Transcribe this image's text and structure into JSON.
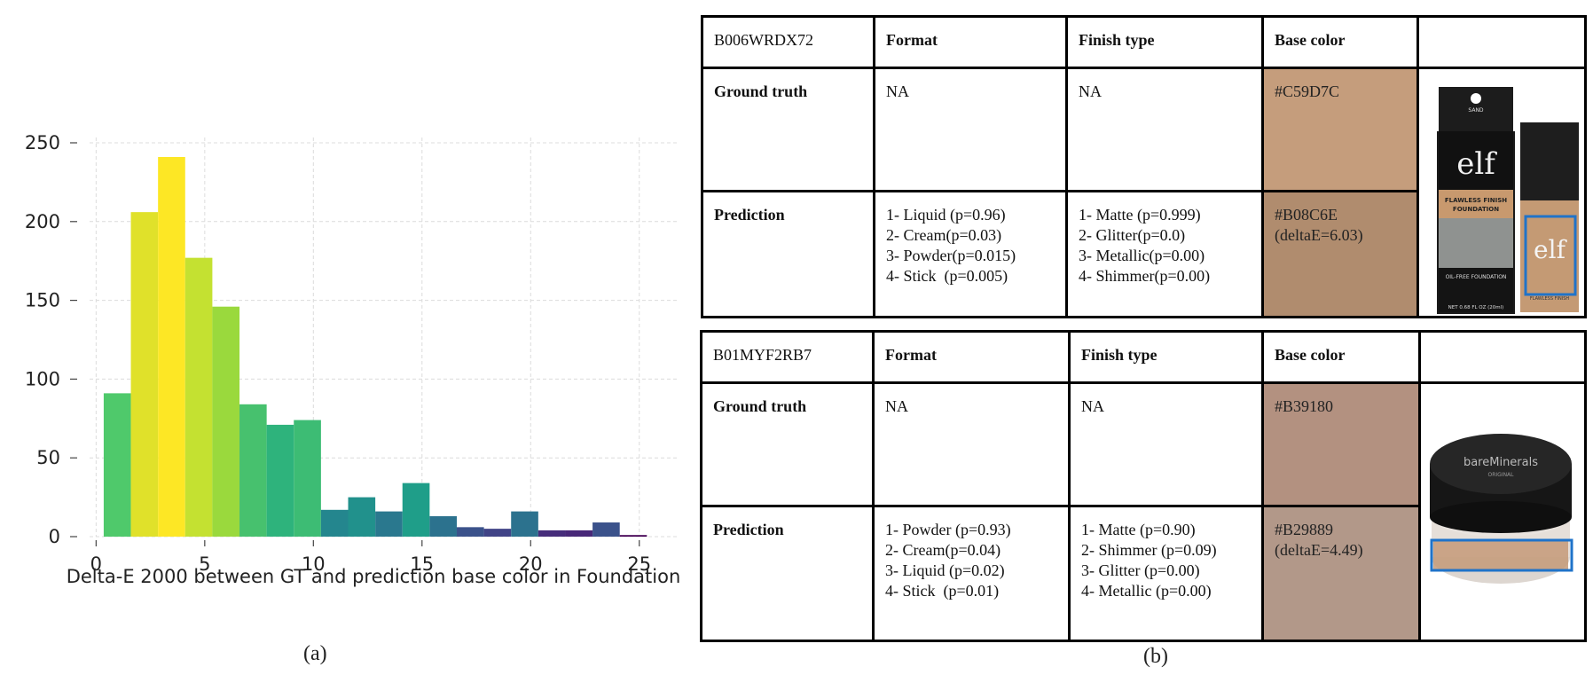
{
  "figure": {
    "caption_a": "(a)",
    "caption_b": "(b)"
  },
  "chart_data": {
    "type": "bar",
    "title": "",
    "xlabel": "Delta-E 2000 between GT and prediction base color in Foundation",
    "ylabel": "",
    "xlim": [
      0,
      25
    ],
    "ylim": [
      0,
      250
    ],
    "x_ticks": [
      0,
      5,
      10,
      15,
      20,
      25
    ],
    "y_ticks": [
      0,
      50,
      100,
      150,
      200,
      250
    ],
    "grid": true,
    "bins": [
      {
        "x0": 0.35,
        "x1": 1.6,
        "value": 91,
        "color": "#4fc96b"
      },
      {
        "x0": 1.6,
        "x1": 2.85,
        "value": 206,
        "color": "#e0e12a"
      },
      {
        "x0": 2.85,
        "x1": 4.1,
        "value": 241,
        "color": "#fde725"
      },
      {
        "x0": 4.1,
        "x1": 5.35,
        "value": 177,
        "color": "#c4e131"
      },
      {
        "x0": 5.35,
        "x1": 6.6,
        "value": 146,
        "color": "#9ad93d"
      },
      {
        "x0": 6.6,
        "x1": 7.85,
        "value": 84,
        "color": "#47c16e"
      },
      {
        "x0": 7.85,
        "x1": 9.1,
        "value": 71,
        "color": "#2eb37c"
      },
      {
        "x0": 9.1,
        "x1": 10.35,
        "value": 74,
        "color": "#3dbc74"
      },
      {
        "x0": 10.35,
        "x1": 11.6,
        "value": 17,
        "color": "#24868e"
      },
      {
        "x0": 11.6,
        "x1": 12.85,
        "value": 25,
        "color": "#21918c"
      },
      {
        "x0": 12.85,
        "x1": 14.1,
        "value": 16,
        "color": "#2a788e"
      },
      {
        "x0": 14.1,
        "x1": 15.35,
        "value": 34,
        "color": "#1f9e89"
      },
      {
        "x0": 15.35,
        "x1": 16.6,
        "value": 13,
        "color": "#2c728e"
      },
      {
        "x0": 16.6,
        "x1": 17.85,
        "value": 6,
        "color": "#3b528b"
      },
      {
        "x0": 17.85,
        "x1": 19.1,
        "value": 5,
        "color": "#414487"
      },
      {
        "x0": 19.1,
        "x1": 20.35,
        "value": 16,
        "color": "#2c728e"
      },
      {
        "x0": 20.35,
        "x1": 21.6,
        "value": 4,
        "color": "#472d7b"
      },
      {
        "x0": 21.6,
        "x1": 22.85,
        "value": 4,
        "color": "#482878"
      },
      {
        "x0": 22.85,
        "x1": 24.1,
        "value": 9,
        "color": "#3b528b"
      },
      {
        "x0": 24.1,
        "x1": 25.35,
        "value": 1,
        "color": "#440154"
      }
    ]
  },
  "products": [
    {
      "id": "B006WRDX72",
      "header": {
        "format": "Format",
        "finish": "Finish type",
        "base": "Base color"
      },
      "ground_truth": {
        "label": "Ground truth",
        "format": "NA",
        "finish": "NA",
        "base": "#C59D7C",
        "swatch": "#C59D7C"
      },
      "prediction": {
        "label": "Prediction",
        "format": [
          "1- Liquid (p=0.96)",
          "2- Cream(p=0.03)",
          "3- Powder(p=0.015)",
          "4- Stick  (p=0.005)"
        ],
        "finish": [
          "1- Matte (p=0.999)",
          "2- Glitter(p=0.0)",
          "3- Metallic(p=0.00)",
          "4- Shimmer(p=0.00)"
        ],
        "base_line1": "#B08C6E",
        "base_line2": "(deltaE=6.03)",
        "swatch": "#B08C6E"
      },
      "image": {
        "box_text": "elf",
        "logo_large": "e.l.f.",
        "logo_small": "e.l.f.",
        "line1": "FLAWLESS FINISH",
        "line2": "FOUNDATION",
        "line3": "SAND",
        "line4": "OIL-FREE FOUNDATION",
        "line5": "NET 0.68 FL OZ (20ml)",
        "line6": "FLAWLESS FINISH"
      }
    },
    {
      "id": "B01MYF2RB7",
      "header": {
        "format": "Format",
        "finish": "Finish type",
        "base": "Base color"
      },
      "ground_truth": {
        "label": "Ground truth",
        "format": "NA",
        "finish": "NA",
        "base": "#B39180",
        "swatch": "#B39180"
      },
      "prediction": {
        "label": "Prediction",
        "format": [
          "1- Powder (p=0.93)",
          "2- Cream(p=0.04)",
          "3- Liquid (p=0.02)",
          "4- Stick  (p=0.01)"
        ],
        "finish": [
          "1- Matte (p=0.90)",
          "2- Shimmer (p=0.09)",
          "3- Glitter (p=0.00)",
          "4- Metallic (p=0.00)"
        ],
        "base_line1": "#B29889",
        "base_line2": "(deltaE=4.49)",
        "swatch": "#B29889"
      },
      "image": {
        "brand": "bareMinerals",
        "sub": "ORIGINAL"
      }
    }
  ]
}
